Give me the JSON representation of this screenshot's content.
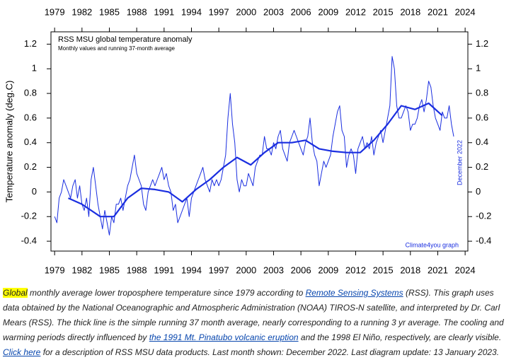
{
  "chart_data": {
    "type": "line",
    "title": "RSS MSU global temperature anomaly",
    "subtitle": "Monthly values and running 37-month average",
    "y_label": "Temperature anomaly (deg.C)",
    "annotations": [
      "December 2022",
      "Climate4you graph"
    ],
    "xlim": [
      1978.6,
      2024.3
    ],
    "ylim": [
      -0.48,
      1.3
    ],
    "xticks": [
      1979,
      1982,
      1985,
      1988,
      1991,
      1994,
      1997,
      2000,
      2003,
      2006,
      2009,
      2012,
      2015,
      2018,
      2021,
      2024
    ],
    "yticks": [
      1.2,
      1,
      0.8,
      0.6,
      0.4,
      0.2,
      0,
      -0.2,
      -0.4
    ],
    "series": [
      {
        "name": "Monthly values",
        "color": "#1a2ee0",
        "x": [
          1979,
          1979.25,
          1979.5,
          1979.75,
          1980,
          1980.25,
          1980.5,
          1980.75,
          1981,
          1981.25,
          1981.5,
          1981.75,
          1982,
          1982.25,
          1982.5,
          1982.75,
          1983,
          1983.25,
          1983.5,
          1983.75,
          1984,
          1984.25,
          1984.5,
          1984.75,
          1985,
          1985.25,
          1985.5,
          1985.75,
          1986,
          1986.25,
          1986.5,
          1986.75,
          1987,
          1987.25,
          1987.5,
          1987.75,
          1988,
          1988.25,
          1988.5,
          1988.75,
          1989,
          1989.25,
          1989.5,
          1989.75,
          1990,
          1990.25,
          1990.5,
          1990.75,
          1991,
          1991.25,
          1991.5,
          1991.75,
          1992,
          1992.25,
          1992.5,
          1992.75,
          1993,
          1993.25,
          1993.5,
          1993.75,
          1994,
          1994.25,
          1994.5,
          1994.75,
          1995,
          1995.25,
          1995.5,
          1995.75,
          1996,
          1996.25,
          1996.5,
          1996.75,
          1997,
          1997.25,
          1997.5,
          1997.75,
          1998,
          1998.25,
          1998.5,
          1998.75,
          1999,
          1999.25,
          1999.5,
          1999.75,
          2000,
          2000.25,
          2000.5,
          2000.75,
          2001,
          2001.25,
          2001.5,
          2001.75,
          2002,
          2002.25,
          2002.5,
          2002.75,
          2003,
          2003.25,
          2003.5,
          2003.75,
          2004,
          2004.25,
          2004.5,
          2004.75,
          2005,
          2005.25,
          2005.5,
          2005.75,
          2006,
          2006.25,
          2006.5,
          2006.75,
          2007,
          2007.25,
          2007.5,
          2007.75,
          2008,
          2008.25,
          2008.5,
          2008.75,
          2009,
          2009.25,
          2009.5,
          2009.75,
          2010,
          2010.25,
          2010.5,
          2010.75,
          2011,
          2011.25,
          2011.5,
          2011.75,
          2012,
          2012.25,
          2012.5,
          2012.75,
          2013,
          2013.25,
          2013.5,
          2013.75,
          2014,
          2014.25,
          2014.5,
          2014.75,
          2015,
          2015.25,
          2015.5,
          2015.75,
          2016,
          2016.25,
          2016.5,
          2016.75,
          2017,
          2017.25,
          2017.5,
          2017.75,
          2018,
          2018.25,
          2018.5,
          2018.75,
          2019,
          2019.25,
          2019.5,
          2019.75,
          2020,
          2020.25,
          2020.5,
          2020.75,
          2021,
          2021.25,
          2021.5,
          2021.75,
          2022,
          2022.25,
          2022.5,
          2022.75
        ],
        "values": [
          -0.2,
          -0.25,
          -0.05,
          0.0,
          0.1,
          0.05,
          0.0,
          -0.05,
          0.05,
          0.1,
          -0.05,
          0.05,
          -0.1,
          -0.15,
          -0.05,
          -0.2,
          0.1,
          0.2,
          0.05,
          -0.1,
          -0.2,
          -0.3,
          -0.15,
          -0.25,
          -0.35,
          -0.2,
          -0.25,
          -0.1,
          -0.1,
          -0.05,
          -0.15,
          -0.05,
          0.05,
          0.1,
          0.2,
          0.3,
          0.15,
          0.1,
          0.05,
          -0.1,
          -0.15,
          0.0,
          0.05,
          0.1,
          0.05,
          0.1,
          0.15,
          0.2,
          0.1,
          0.15,
          0.05,
          0.0,
          -0.15,
          -0.1,
          -0.25,
          -0.2,
          -0.15,
          -0.1,
          -0.05,
          -0.2,
          -0.05,
          0.0,
          0.05,
          0.1,
          0.15,
          0.2,
          0.1,
          0.05,
          0.0,
          0.1,
          0.05,
          0.1,
          0.05,
          0.1,
          0.2,
          0.3,
          0.6,
          0.8,
          0.55,
          0.4,
          0.1,
          0.0,
          0.1,
          0.05,
          0.05,
          0.15,
          0.1,
          0.05,
          0.2,
          0.25,
          0.3,
          0.3,
          0.45,
          0.35,
          0.35,
          0.3,
          0.4,
          0.35,
          0.45,
          0.5,
          0.35,
          0.3,
          0.25,
          0.4,
          0.45,
          0.5,
          0.45,
          0.4,
          0.35,
          0.3,
          0.4,
          0.45,
          0.6,
          0.4,
          0.3,
          0.25,
          0.05,
          0.15,
          0.25,
          0.2,
          0.25,
          0.3,
          0.45,
          0.55,
          0.65,
          0.7,
          0.5,
          0.45,
          0.2,
          0.3,
          0.35,
          0.3,
          0.15,
          0.35,
          0.4,
          0.45,
          0.35,
          0.4,
          0.35,
          0.45,
          0.3,
          0.4,
          0.45,
          0.5,
          0.4,
          0.5,
          0.6,
          0.7,
          1.1,
          1.0,
          0.7,
          0.6,
          0.6,
          0.65,
          0.7,
          0.65,
          0.5,
          0.55,
          0.55,
          0.6,
          0.7,
          0.75,
          0.65,
          0.75,
          0.9,
          0.85,
          0.7,
          0.6,
          0.55,
          0.5,
          0.65,
          0.6,
          0.6,
          0.7,
          0.55,
          0.45
        ]
      },
      {
        "name": "Running 37-month average",
        "color": "#1a2ee0",
        "x": [
          1980.5,
          1982,
          1984,
          1985.5,
          1987,
          1988.5,
          1990,
          1991.5,
          1993,
          1994.5,
          1996,
          1997.5,
          1999,
          2000.5,
          2002,
          2003.5,
          2005,
          2006.5,
          2008,
          2009.5,
          2011,
          2012.5,
          2014,
          2015.5,
          2017,
          2018.5,
          2020,
          2021.5
        ],
        "values": [
          -0.05,
          -0.1,
          -0.2,
          -0.2,
          -0.05,
          0.03,
          0.02,
          0.0,
          -0.08,
          0.02,
          0.1,
          0.2,
          0.28,
          0.22,
          0.32,
          0.4,
          0.4,
          0.42,
          0.35,
          0.33,
          0.32,
          0.32,
          0.42,
          0.55,
          0.7,
          0.67,
          0.72,
          0.62
        ]
      }
    ]
  },
  "caption": [
    "Global",
    " monthly average lower troposphere temperature since 1979 according to ",
    "Remote Sensing Systems",
    " (RSS). This graph uses data obtained by the National Oceanographic and Atmospheric Administration (NOAA) TIROS-N satellite, and interpreted by Dr. Carl Mears (RSS). The thick line is the simple running 37 month average, nearly corresponding to a running 3 yr average. The cooling and warming periods directly influenced by ",
    "the 1991 Mt. Pinatubo volcanic eruption",
    " and the 1998 El Niño, respectively, are clearly visible. ",
    "Click here",
    " for a description of RSS MSU data products. Last month shown: December 2022. Last diagram update: 13 January 2023."
  ]
}
